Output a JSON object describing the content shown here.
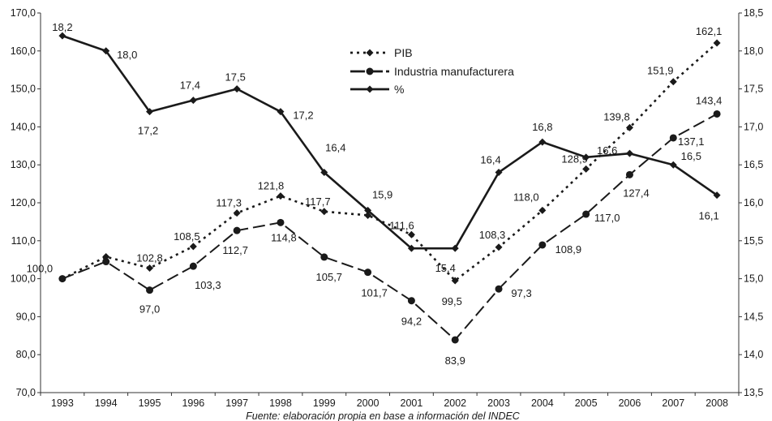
{
  "chart_data": {
    "type": "line",
    "title": "",
    "source": "Fuente: elaboración propia en base a información del INDEC",
    "x": [
      "1993",
      "1994",
      "1995",
      "1996",
      "1997",
      "1998",
      "1999",
      "2000",
      "2001",
      "2002",
      "2003",
      "2004",
      "2005",
      "2006",
      "2007",
      "2008"
    ],
    "y_left": {
      "ticks": [
        "70,0",
        "80,0",
        "90,0",
        "100,0",
        "110,0",
        "120,0",
        "130,0",
        "140,0",
        "150,0",
        "160,0",
        "170,0"
      ],
      "range": [
        70,
        170
      ]
    },
    "y_right": {
      "ticks": [
        "13,5",
        "14,0",
        "14,5",
        "15,0",
        "15,5",
        "16,0",
        "16,5",
        "17,0",
        "17,5",
        "18,0",
        "18,5"
      ],
      "range": [
        13.5,
        18.5
      ]
    },
    "grid": false,
    "legend_position": "top-center",
    "series": [
      {
        "name": "PIB",
        "axis": "left",
        "style": "dotted",
        "marker": "diamond",
        "color": "#1a1a1a",
        "values": [
          100.0,
          105.8,
          102.8,
          108.5,
          117.3,
          121.8,
          117.7,
          116.7,
          111.6,
          99.5,
          108.3,
          118.0,
          128.9,
          139.8,
          151.9,
          162.1
        ],
        "labels": [
          "",
          "",
          "102,8",
          "108,5",
          "117,3",
          "121,8",
          "117,7",
          "",
          "111,6",
          "99,5",
          "108,3",
          "118,0",
          "128,9",
          "139,8",
          "151,9",
          "162,1"
        ]
      },
      {
        "name": "Industria manufacturera",
        "axis": "left",
        "style": "dashed",
        "marker": "circle",
        "color": "#1a1a1a",
        "values": [
          100.0,
          104.5,
          97.0,
          103.3,
          112.7,
          114.8,
          105.7,
          101.7,
          94.2,
          83.9,
          97.3,
          108.9,
          117.0,
          127.4,
          137.1,
          143.4
        ],
        "labels": [
          "100,0",
          "",
          "97,0",
          "103,3",
          "112,7",
          "114,8",
          "105,7",
          "101,7",
          "94,2",
          "83,9",
          "97,3",
          "108,9",
          "117,0",
          "127,4",
          "137,1",
          "143,4"
        ]
      },
      {
        "name": "%",
        "axis": "right",
        "style": "solid",
        "marker": "diamond",
        "color": "#1a1a1a",
        "values": [
          18.2,
          18.0,
          17.2,
          17.35,
          17.5,
          17.2,
          16.4,
          15.9,
          15.4,
          15.4,
          16.4,
          16.8,
          16.6,
          16.65,
          16.5,
          16.1
        ],
        "labels": [
          "18,2",
          "18,0",
          "17,2",
          "17,4",
          "17,5",
          "17,2",
          "16,4",
          "15,9",
          "",
          "15,4",
          "16,4",
          "16,8",
          "16,6",
          "",
          "16,5",
          "16,1"
        ]
      }
    ]
  }
}
